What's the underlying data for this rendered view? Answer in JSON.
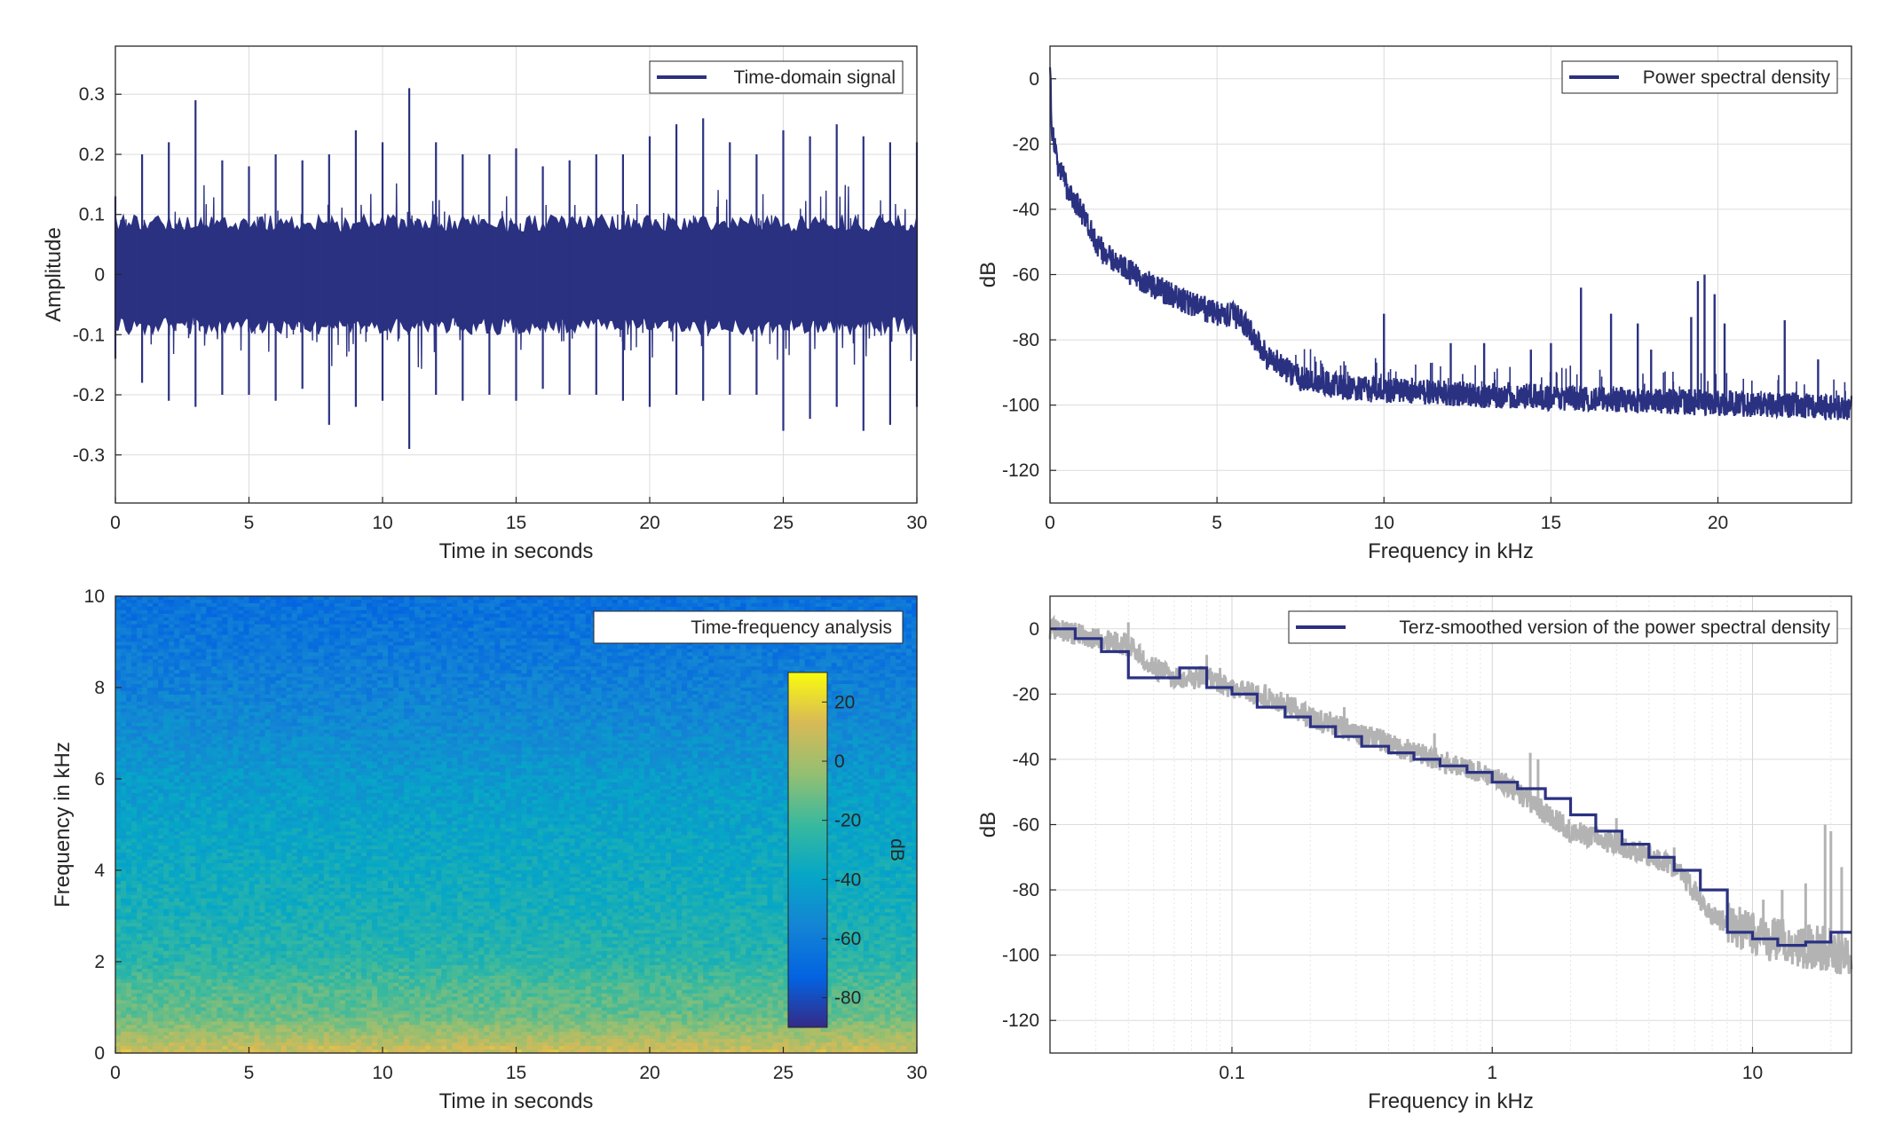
{
  "colors": {
    "series": "#2b3181",
    "raw": "#b3b3b3",
    "grid": "#dcdcdc",
    "axis": "#262626"
  },
  "chart_data": [
    {
      "id": "time-signal",
      "type": "line",
      "legend": "Time-domain signal",
      "legend_position": "top-right",
      "xlabel": "Time in seconds",
      "ylabel": "Amplitude",
      "xlim": [
        0,
        30
      ],
      "ylim": [
        -0.38,
        0.38
      ],
      "xticks": [
        0,
        5,
        10,
        15,
        20,
        25,
        30
      ],
      "xtick_labels": [
        "0",
        "5",
        "10",
        "15",
        "20",
        "25",
        "30"
      ],
      "yticks": [
        -0.3,
        -0.2,
        -0.1,
        0,
        0.1,
        0.2,
        0.3
      ],
      "ytick_labels": [
        "-0.3",
        "-0.2",
        "-0.1",
        "0",
        "0.1",
        "0.2",
        "0.3"
      ],
      "grid": true,
      "envelope": {
        "t": [
          0,
          1,
          2,
          3,
          4,
          5,
          6,
          7,
          8,
          9,
          10,
          11,
          12,
          13,
          14,
          15,
          16,
          17,
          18,
          19,
          20,
          21,
          22,
          23,
          24,
          25,
          26,
          27,
          28,
          29,
          30
        ],
        "max": [
          0.13,
          0.2,
          0.22,
          0.29,
          0.19,
          0.18,
          0.2,
          0.19,
          0.2,
          0.24,
          0.22,
          0.31,
          0.22,
          0.2,
          0.2,
          0.21,
          0.18,
          0.19,
          0.2,
          0.2,
          0.23,
          0.25,
          0.26,
          0.22,
          0.2,
          0.24,
          0.23,
          0.25,
          0.23,
          0.22,
          0.22
        ],
        "min": [
          -0.14,
          -0.18,
          -0.21,
          -0.22,
          -0.2,
          -0.2,
          -0.21,
          -0.19,
          -0.25,
          -0.22,
          -0.21,
          -0.29,
          -0.2,
          -0.21,
          -0.2,
          -0.21,
          -0.19,
          -0.2,
          -0.2,
          -0.21,
          -0.22,
          -0.2,
          -0.21,
          -0.2,
          -0.2,
          -0.26,
          -0.24,
          -0.22,
          -0.26,
          -0.25,
          -0.22
        ]
      }
    },
    {
      "id": "psd",
      "type": "line",
      "legend": "Power spectral density",
      "legend_position": "top-right",
      "xlabel": "Frequency in kHz",
      "ylabel": "dB",
      "xlim": [
        0,
        24
      ],
      "ylim": [
        -130,
        10
      ],
      "xticks": [
        0,
        5,
        10,
        15,
        20
      ],
      "xtick_labels": [
        "0",
        "5",
        "10",
        "15",
        "20"
      ],
      "yticks": [
        -120,
        -100,
        -80,
        -60,
        -40,
        -20,
        0
      ],
      "ytick_labels": [
        "-120",
        "-100",
        "-80",
        "-60",
        "-40",
        "-20",
        "0"
      ],
      "grid": true,
      "curve": {
        "x": [
          0,
          0.05,
          0.2,
          0.5,
          1,
          1.5,
          2,
          3,
          4,
          5,
          5.7,
          6.5,
          7.5,
          9,
          11,
          13,
          16,
          19,
          22,
          24
        ],
        "y": [
          5,
          -15,
          -25,
          -33,
          -42,
          -52,
          -57,
          -63,
          -68,
          -72,
          -73,
          -85,
          -92,
          -95,
          -96,
          -97,
          -98,
          -99,
          -100,
          -101
        ]
      },
      "spread": 4,
      "peaks": [
        {
          "x": 10.0,
          "y": -72
        },
        {
          "x": 12.0,
          "y": -81
        },
        {
          "x": 13.0,
          "y": -81
        },
        {
          "x": 14.4,
          "y": -83
        },
        {
          "x": 15.0,
          "y": -81
        },
        {
          "x": 15.9,
          "y": -64
        },
        {
          "x": 16.8,
          "y": -72
        },
        {
          "x": 17.6,
          "y": -75
        },
        {
          "x": 18.0,
          "y": -83
        },
        {
          "x": 19.2,
          "y": -73
        },
        {
          "x": 19.4,
          "y": -62
        },
        {
          "x": 19.6,
          "y": -60
        },
        {
          "x": 19.9,
          "y": -66
        },
        {
          "x": 20.2,
          "y": -75
        },
        {
          "x": 22.0,
          "y": -74
        },
        {
          "x": 23.0,
          "y": -86
        }
      ]
    },
    {
      "id": "spectrogram",
      "type": "heatmap",
      "legend": "Time-frequency analysis",
      "legend_position": "top-right",
      "xlabel": "Time in seconds",
      "ylabel": "Frequency in kHz",
      "xlim": [
        0,
        30
      ],
      "ylim": [
        0,
        10
      ],
      "xticks": [
        0,
        5,
        10,
        15,
        20,
        25,
        30
      ],
      "xtick_labels": [
        "0",
        "5",
        "10",
        "15",
        "20",
        "25",
        "30"
      ],
      "yticks": [
        0,
        2,
        4,
        6,
        8,
        10
      ],
      "ytick_labels": [
        "0",
        "2",
        "4",
        "6",
        "8",
        "10"
      ],
      "colorbar": {
        "label": "dB",
        "range": [
          -90,
          30
        ],
        "ticks": [
          20,
          0,
          -20,
          -40,
          -60,
          -80
        ],
        "tick_labels": [
          "20",
          "0",
          "-20",
          "-40",
          "-60",
          "-80"
        ]
      },
      "level_by_freq": {
        "f": [
          0,
          0.3,
          0.8,
          1.5,
          2,
          3,
          4,
          5,
          6,
          7,
          8,
          9,
          10
        ],
        "db": [
          12,
          2,
          -12,
          -18,
          -26,
          -32,
          -36,
          -40,
          -45,
          -52,
          -58,
          -63,
          -66
        ]
      }
    },
    {
      "id": "terz-psd",
      "type": "line",
      "legend": "Terz-smoothed version of the power spectral density",
      "legend_position": "top-right",
      "xlabel": "Frequency in kHz",
      "ylabel": "dB",
      "xscale": "log",
      "xlim": [
        0.02,
        24
      ],
      "ylim": [
        -130,
        10
      ],
      "xticks": [
        0.1,
        1,
        10
      ],
      "xtick_labels": [
        "0.1",
        "1",
        "10"
      ],
      "yticks": [
        -120,
        -100,
        -80,
        -60,
        -40,
        -20,
        0
      ],
      "ytick_labels": [
        "-120",
        "-100",
        "-80",
        "-60",
        "-40",
        "-20",
        "0"
      ],
      "grid": true,
      "raw": {
        "x": [
          0.02,
          0.03,
          0.04,
          0.05,
          0.06,
          0.08,
          0.1,
          0.15,
          0.2,
          0.3,
          0.5,
          0.8,
          1,
          1.5,
          2,
          3,
          5,
          7,
          10,
          15,
          20,
          24
        ],
        "y": [
          0,
          -3,
          -5,
          -12,
          -15,
          -15,
          -18,
          -22,
          -27,
          -32,
          -38,
          -43,
          -45,
          -55,
          -62,
          -66,
          -73,
          -88,
          -94,
          -97,
          -98,
          -101
        ]
      },
      "raw_spikes": [
        {
          "x": 0.04,
          "y": 2
        },
        {
          "x": 0.08,
          "y": -8
        },
        {
          "x": 0.09,
          "y": -12
        },
        {
          "x": 0.27,
          "y": -24
        },
        {
          "x": 0.6,
          "y": -32
        },
        {
          "x": 1.4,
          "y": -38
        },
        {
          "x": 1.5,
          "y": -40
        },
        {
          "x": 3.0,
          "y": -58
        },
        {
          "x": 5.0,
          "y": -67
        },
        {
          "x": 11.0,
          "y": -83
        },
        {
          "x": 13.0,
          "y": -80
        },
        {
          "x": 16.0,
          "y": -78
        },
        {
          "x": 19.0,
          "y": -60
        },
        {
          "x": 20.0,
          "y": -62
        },
        {
          "x": 22.0,
          "y": -73
        }
      ],
      "smoothed_x": [
        0.02,
        0.025,
        0.0315,
        0.04,
        0.05,
        0.063,
        0.08,
        0.1,
        0.125,
        0.16,
        0.2,
        0.25,
        0.315,
        0.4,
        0.5,
        0.63,
        0.8,
        1.0,
        1.25,
        1.6,
        2.0,
        2.5,
        3.15,
        4.0,
        5.0,
        6.3,
        8.0,
        10.0,
        12.5,
        16.0,
        20.0,
        24.0
      ],
      "smoothed_y": [
        0,
        -3,
        -7,
        -15,
        -15,
        -12,
        -18,
        -20,
        -24,
        -27,
        -30,
        -33,
        -36,
        -38,
        -40,
        -42,
        -44,
        -47,
        -49,
        -52,
        -57,
        -62,
        -66,
        -70,
        -74,
        -80,
        -93,
        -95,
        -97,
        -96,
        -93,
        -93
      ]
    }
  ]
}
